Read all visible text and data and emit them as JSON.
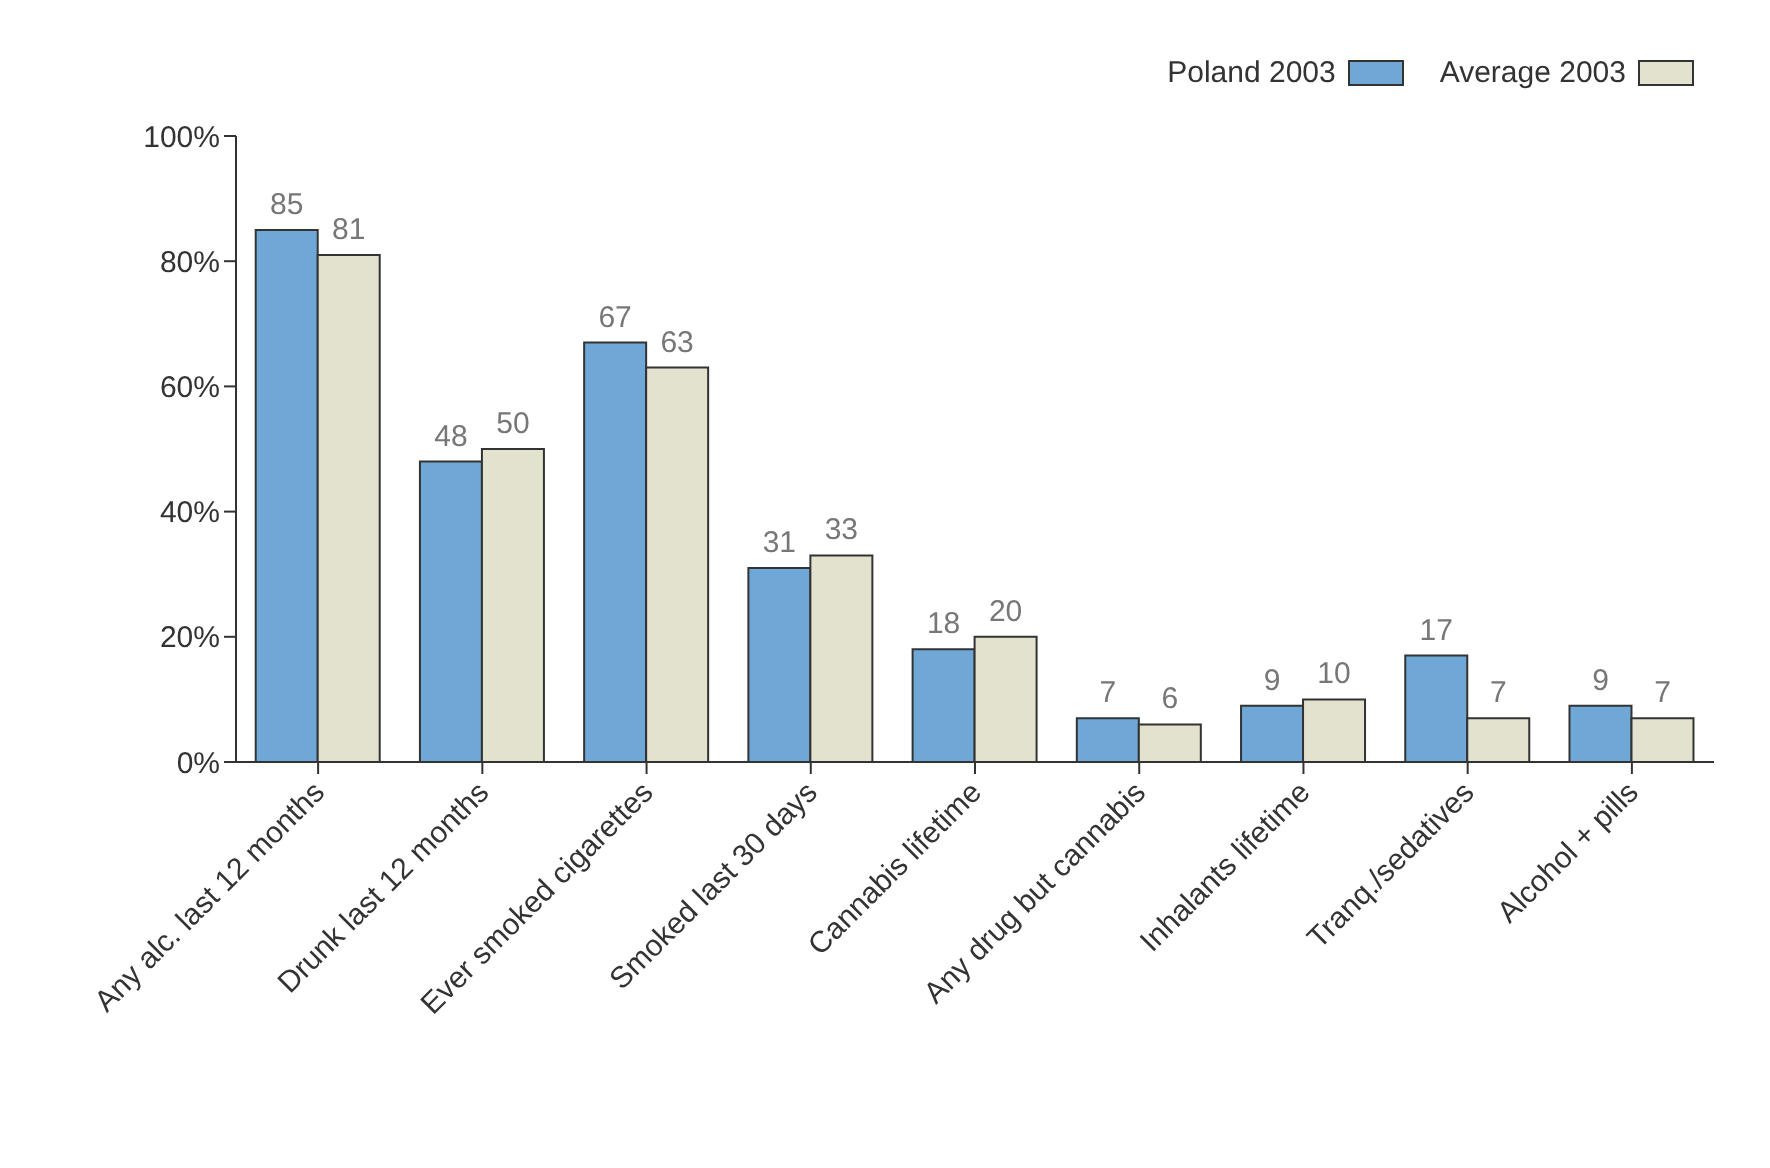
{
  "chart_data": {
    "type": "bar",
    "categories": [
      "Any alc. last 12 months",
      "Drunk last 12 months",
      "Ever smoked cigarettes",
      "Smoked last 30 days",
      "Cannabis lifetime",
      "Any drug but cannabis",
      "Inhalants lifetime",
      "Tranq./sedatives",
      "Alcohol + pills"
    ],
    "series": [
      {
        "name": "Poland 2003",
        "color": "#6fa8d6",
        "values": [
          85,
          48,
          67,
          31,
          18,
          7,
          9,
          17,
          9
        ]
      },
      {
        "name": "Average 2003",
        "color": "#e2e2cf",
        "values": [
          81,
          50,
          63,
          33,
          20,
          6,
          10,
          7,
          7
        ]
      }
    ],
    "ylim": [
      0,
      100
    ],
    "yticks": [
      {
        "value": 0,
        "label": "0%"
      },
      {
        "value": 20,
        "label": "20%"
      },
      {
        "value": 40,
        "label": "40%"
      },
      {
        "value": 60,
        "label": "60%"
      },
      {
        "value": 80,
        "label": "80%"
      },
      {
        "value": 100,
        "label": "100%"
      }
    ],
    "data_labels": true,
    "grid": false,
    "legend": "top right"
  }
}
